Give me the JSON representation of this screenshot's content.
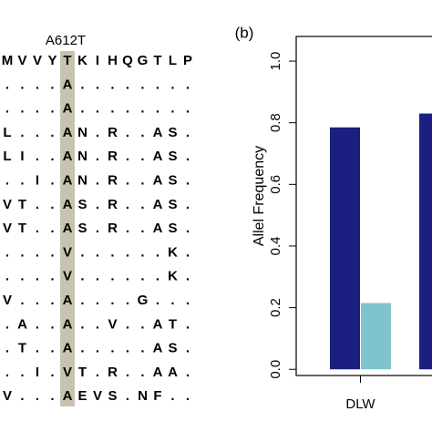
{
  "alignment": {
    "label": "A612T",
    "highlight_column": 4,
    "rows": [
      [
        "M",
        "V",
        "V",
        "Y",
        "T",
        "K",
        "I",
        "H",
        "Q",
        "G",
        "T",
        "L",
        "P"
      ],
      [
        ".",
        ".",
        ".",
        ".",
        "A",
        ".",
        ".",
        ".",
        ".",
        ".",
        ".",
        ".",
        "."
      ],
      [
        ".",
        ".",
        ".",
        ".",
        "A",
        ".",
        ".",
        ".",
        ".",
        ".",
        ".",
        ".",
        "."
      ],
      [
        "L",
        ".",
        ".",
        ".",
        "A",
        "N",
        ".",
        "R",
        ".",
        ".",
        "A",
        "S",
        "."
      ],
      [
        "L",
        "I",
        ".",
        ".",
        "A",
        "N",
        ".",
        "R",
        ".",
        ".",
        "A",
        "S",
        "."
      ],
      [
        ".",
        ".",
        "I",
        ".",
        "A",
        "N",
        ".",
        "R",
        ".",
        ".",
        "A",
        "S",
        "."
      ],
      [
        "V",
        "T",
        ".",
        ".",
        "A",
        "S",
        ".",
        "R",
        ".",
        ".",
        "A",
        "S",
        "."
      ],
      [
        "V",
        "T",
        ".",
        ".",
        "A",
        "S",
        ".",
        "R",
        ".",
        ".",
        "A",
        "S",
        "."
      ],
      [
        ".",
        ".",
        ".",
        ".",
        "V",
        ".",
        ".",
        ".",
        ".",
        ".",
        ".",
        "K",
        "."
      ],
      [
        ".",
        ".",
        ".",
        ".",
        "V",
        ".",
        ".",
        ".",
        ".",
        ".",
        ".",
        "K",
        "."
      ],
      [
        "V",
        ".",
        ".",
        ".",
        "A",
        ".",
        ".",
        ".",
        ".",
        "G",
        ".",
        ".",
        "."
      ],
      [
        ".",
        "A",
        ".",
        ".",
        "A",
        ".",
        ".",
        "V",
        ".",
        ".",
        "A",
        "T",
        "."
      ],
      [
        ".",
        "T",
        ".",
        ".",
        "A",
        ".",
        ".",
        ".",
        ".",
        ".",
        "A",
        "S",
        "."
      ],
      [
        ".",
        ".",
        "I",
        ".",
        "V",
        "T",
        ".",
        "R",
        ".",
        ".",
        "A",
        "A",
        "."
      ],
      [
        "V",
        ".",
        ".",
        ".",
        "A",
        "E",
        "V",
        "S",
        ".",
        "N",
        "F",
        ".",
        "."
      ]
    ]
  },
  "chart_data": {
    "type": "bar",
    "panel_label": "(b)",
    "y_label": "Allel Frequency",
    "categories": [
      "DLW",
      null
    ],
    "series": [
      {
        "color": "#1a1f80",
        "values": [
          0.785,
          0.83
        ]
      },
      {
        "color": "#7fc4cc",
        "values": [
          0.215,
          null
        ]
      }
    ],
    "ylim": [
      -0.02,
      1.08
    ],
    "yticks": [
      {
        "value": 0,
        "label": "0.0"
      },
      {
        "value": 0.2,
        "label": "0.2"
      },
      {
        "value": 0.4,
        "label": "0.4"
      },
      {
        "value": 0.6,
        "label": "0.6"
      },
      {
        "value": 0.8,
        "label": "0.8"
      },
      {
        "value": 1,
        "label": "1.0"
      }
    ]
  }
}
